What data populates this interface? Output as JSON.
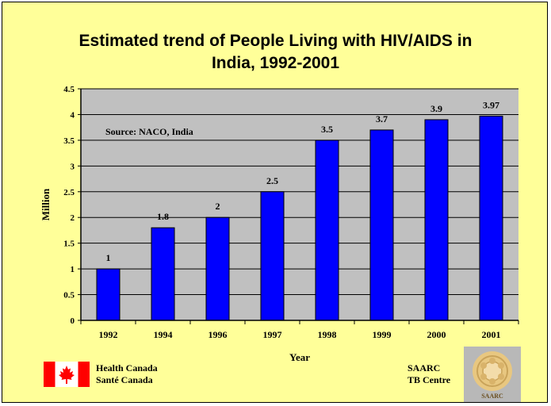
{
  "title_line1": "Estimated trend of People Living with HIV/AIDS in",
  "title_line2": "India, 1992-2001",
  "chart_data": {
    "type": "bar",
    "categories": [
      "1992",
      "1994",
      "1996",
      "1997",
      "1998",
      "1999",
      "2000",
      "2001"
    ],
    "values": [
      1,
      1.8,
      2,
      2.5,
      3.5,
      3.7,
      3.9,
      3.97
    ],
    "data_labels": [
      "1",
      "1.8",
      "2",
      "2.5",
      "3.5",
      "3.7",
      "3.9",
      "3.97"
    ],
    "xlabel": "Year",
    "ylabel": "Million",
    "ylim": [
      0,
      4.5
    ],
    "yticks": [
      "0",
      "0.5",
      "1",
      "1.5",
      "2",
      "2.5",
      "3",
      "3.5",
      "4",
      "4.5"
    ],
    "annotation": "Source: NACO, India",
    "grid": true,
    "colors": {
      "bar": "#0000ff",
      "plot_area": "#c0c0c0",
      "background": "#ffff99"
    }
  },
  "footer": {
    "org_line1": "Health Canada",
    "org_line2": "Santé Canada",
    "saarc_line1": "SAARC",
    "saarc_line2": "TB Centre",
    "logo_text": "SAARC",
    "flag_icon": "canada-flag-icon",
    "logo_icon": "saarc-logo-icon"
  }
}
